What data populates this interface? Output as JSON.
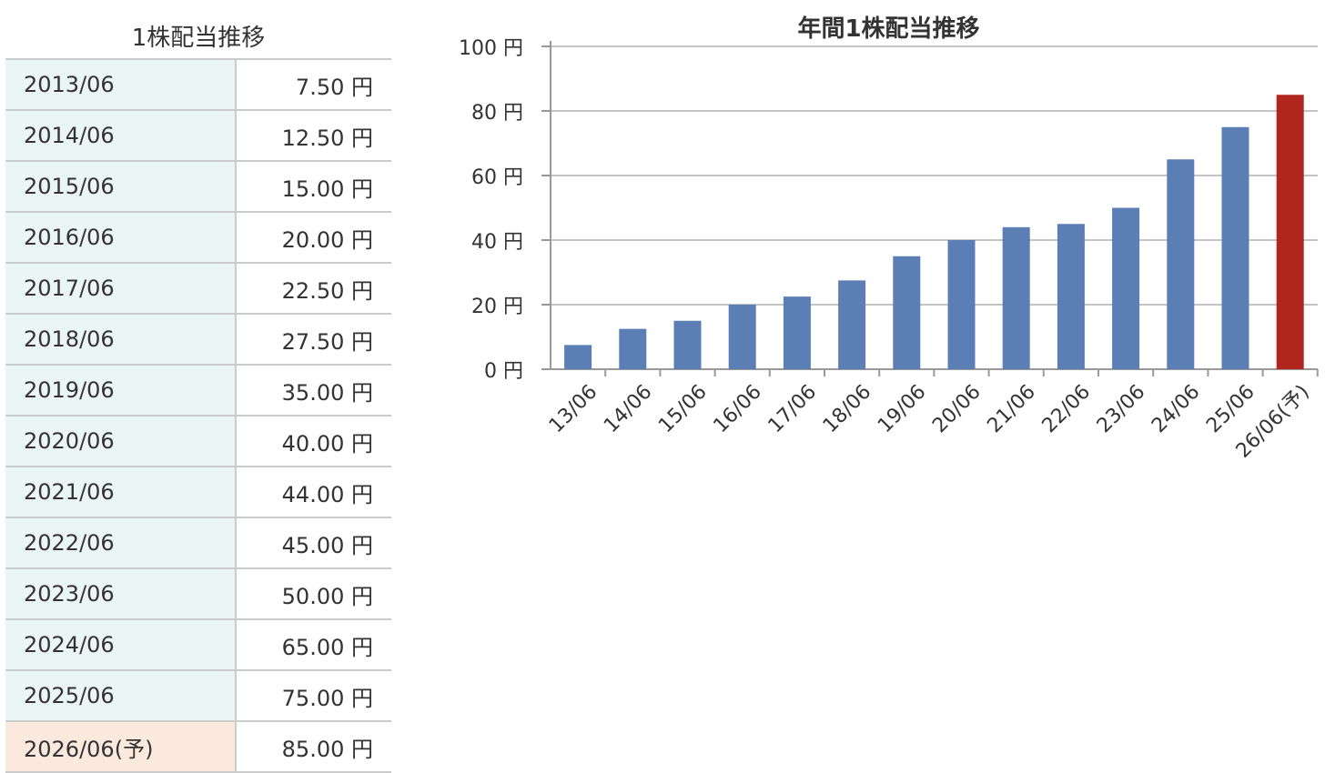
{
  "table": {
    "title": "1株配当推移",
    "rows": [
      {
        "year": "2013/06",
        "value": "7.50 円"
      },
      {
        "year": "2014/06",
        "value": "12.50 円"
      },
      {
        "year": "2015/06",
        "value": "15.00 円"
      },
      {
        "year": "2016/06",
        "value": "20.00 円"
      },
      {
        "year": "2017/06",
        "value": "22.50 円"
      },
      {
        "year": "2018/06",
        "value": "27.50 円"
      },
      {
        "year": "2019/06",
        "value": "35.00 円"
      },
      {
        "year": "2020/06",
        "value": "40.00 円"
      },
      {
        "year": "2021/06",
        "value": "44.00 円"
      },
      {
        "year": "2022/06",
        "value": "45.00 円"
      },
      {
        "year": "2023/06",
        "value": "50.00 円"
      },
      {
        "year": "2024/06",
        "value": "65.00 円"
      },
      {
        "year": "2025/06",
        "value": "75.00 円"
      },
      {
        "year": "2026/06(予)",
        "value": "85.00 円"
      }
    ]
  },
  "chart_data": {
    "type": "bar",
    "title": "年間1株配当推移",
    "xlabel": "",
    "ylabel": "",
    "categories": [
      "13/06",
      "14/06",
      "15/06",
      "16/06",
      "17/06",
      "18/06",
      "19/06",
      "20/06",
      "21/06",
      "22/06",
      "23/06",
      "24/06",
      "25/06",
      "26/06(予)"
    ],
    "values": [
      7.5,
      12.5,
      15,
      20,
      22.5,
      27.5,
      35,
      40,
      44,
      45,
      50,
      65,
      75,
      85
    ],
    "ylim": [
      0,
      100
    ],
    "yticks": [
      0,
      20,
      40,
      60,
      80,
      100
    ],
    "ytick_labels": [
      "0 円",
      "20 円",
      "40 円",
      "60 円",
      "80 円",
      "100 円"
    ],
    "grid": true,
    "bar_color": "#5b7fb5",
    "forecast_color": "#b0261e",
    "forecast_index": 13
  }
}
